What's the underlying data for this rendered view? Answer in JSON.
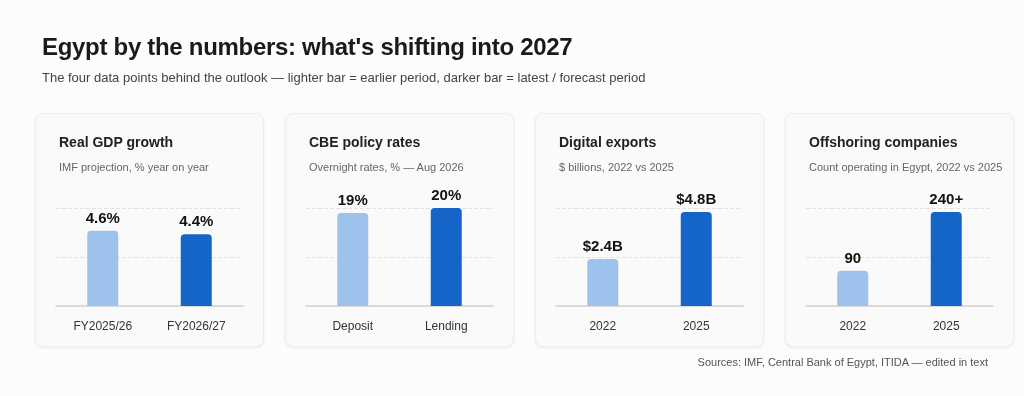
{
  "chart_data": [
    {
      "type": "other",
      "title": "Egypt by the numbers: what's shifting into 2027",
      "subtitle": "The four data points behind the outlook — lighter bar = earlier period, darker bar = latest / forecast period",
      "annotations": [
        "Sources: IMF, Central Bank of Egypt, ITIDA — edited in text"
      ]
    },
    {
      "type": "bar",
      "title": "Real GDP growth",
      "subtitle": "IMF projection, % year on year",
      "categories": [
        "FY2025/26",
        "FY2026/27"
      ],
      "values": [
        4.6,
        4.4
      ],
      "value_labels": [
        "4.6%",
        "4.4%"
      ],
      "colors": [
        "#9dc3ec",
        "#1565c8"
      ],
      "ylim": [
        0,
        6
      ],
      "yticks": [
        {
          "value": 3,
          "label": null
        },
        {
          "value": 6,
          "label": null
        }
      ],
      "grid": "y",
      "tick_labels": "x"
    },
    {
      "type": "bar",
      "title": "CBE policy rates",
      "subtitle": "Overnight rates, % — Aug 2026",
      "categories": [
        "Deposit",
        "Lending"
      ],
      "values": [
        19,
        20
      ],
      "value_labels": [
        "19%",
        "20%"
      ],
      "colors": [
        "#9dc3ec",
        "#1565c8"
      ],
      "ylim": [
        0,
        20
      ],
      "yticks": [
        {
          "value": 10,
          "label": null
        },
        {
          "value": 20,
          "label": null
        }
      ],
      "grid": "y",
      "tick_labels": "x"
    },
    {
      "type": "bar",
      "title": "Digital exports",
      "subtitle": "$ billions, 2022 vs 2025",
      "categories": [
        "2022",
        "2025"
      ],
      "values": [
        2.4,
        4.8
      ],
      "value_labels": [
        "$2.4B",
        "$4.8B"
      ],
      "colors": [
        "#9dc3ec",
        "#1565c8"
      ],
      "ylim": [
        0,
        5
      ],
      "yticks": [
        {
          "value": 2.5,
          "label": null
        },
        {
          "value": 5,
          "label": null
        }
      ],
      "grid": "y",
      "tick_labels": "x"
    },
    {
      "type": "bar",
      "title": "Offshoring companies",
      "subtitle": "Count operating in Egypt, 2022 vs 2025",
      "categories": [
        "2022",
        "2025"
      ],
      "values": [
        90,
        240
      ],
      "value_labels": [
        "90",
        "240+"
      ],
      "colors": [
        "#9dc3ec",
        "#1565c8"
      ],
      "ylim": [
        0,
        250
      ],
      "yticks": [
        {
          "value": 125,
          "label": null
        },
        {
          "value": 250,
          "label": null
        }
      ],
      "grid": "y",
      "tick_labels": "x"
    }
  ]
}
